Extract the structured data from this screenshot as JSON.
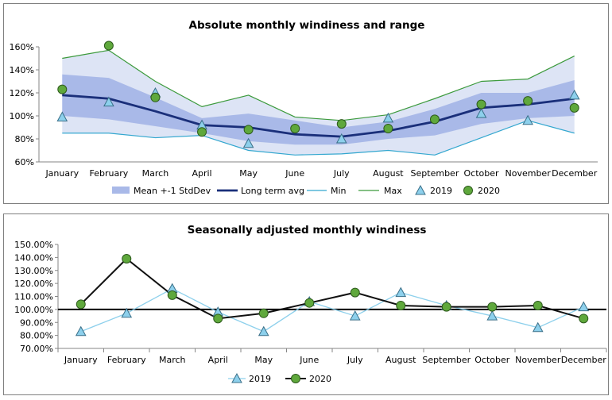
{
  "chart_data": [
    {
      "type": "line",
      "title": "Absolute monthly windiness and range",
      "categories": [
        "January",
        "February",
        "March",
        "April",
        "May",
        "June",
        "July",
        "August",
        "September",
        "October",
        "November",
        "December"
      ],
      "ylim": [
        60,
        160
      ],
      "yticks": [
        "60%",
        "80%",
        "100%",
        "120%",
        "140%",
        "160%"
      ],
      "ytick_values": [
        60,
        80,
        100,
        120,
        140,
        160
      ],
      "bands": [
        {
          "name": "Max",
          "series": "max_band",
          "color": "#dde4f5"
        },
        {
          "name": "Mean +-1 StdDev",
          "color": "#a9b9e8"
        }
      ],
      "series": [
        {
          "name": "Max",
          "kind": "line",
          "color": "#3c9a3c",
          "values": [
            150,
            157,
            130,
            108,
            118,
            99,
            96,
            101,
            115,
            130,
            132,
            152
          ]
        },
        {
          "name": "Min",
          "kind": "line",
          "color": "#33a7cf",
          "values": [
            85,
            85,
            81,
            83,
            70,
            66,
            67,
            70,
            66,
            81,
            96,
            85
          ]
        },
        {
          "name": "Mean upper",
          "kind": "band_edge",
          "values": [
            136,
            133,
            116,
            98,
            102,
            96,
            90,
            95,
            106,
            120,
            120,
            131
          ]
        },
        {
          "name": "Mean lower",
          "kind": "band_edge",
          "values": [
            100,
            97,
            91,
            85,
            78,
            75,
            75,
            80,
            83,
            93,
            98,
            100
          ]
        },
        {
          "name": "Long term avg",
          "kind": "line",
          "color": "#1a2f7a",
          "values": [
            118,
            115,
            104,
            92,
            90,
            84,
            82,
            87,
            95,
            107,
            110,
            115
          ]
        },
        {
          "name": "2019",
          "kind": "triangle",
          "color": "#8dd0ec",
          "values": [
            99,
            112,
            120,
            92,
            76,
            null,
            80,
            98,
            null,
            102,
            96,
            118
          ]
        },
        {
          "name": "2020",
          "kind": "circle",
          "color": "#5fa83c",
          "values": [
            123,
            161,
            116,
            86,
            88,
            89,
            93,
            89,
            97,
            110,
            113,
            107
          ]
        }
      ],
      "legend": [
        "Mean +-1 StdDev",
        "Long term avg",
        "Min",
        "Max",
        "2019",
        "2020"
      ]
    },
    {
      "type": "line",
      "title": "Seasonally adjusted monthly windiness",
      "categories": [
        "January",
        "February",
        "March",
        "April",
        "May",
        "June",
        "July",
        "August",
        "September",
        "October",
        "November",
        "December"
      ],
      "ylim": [
        70,
        150
      ],
      "yticks": [
        "70.00%",
        "80.00%",
        "90.00%",
        "100.00%",
        "110.00%",
        "120.00%",
        "130.00%",
        "140.00%",
        "150.00%"
      ],
      "ytick_values": [
        70,
        80,
        90,
        100,
        110,
        120,
        130,
        140,
        150
      ],
      "reference_line": 100,
      "series": [
        {
          "name": "2019",
          "kind": "triangle",
          "color": "#8dd0ec",
          "values": [
            83,
            97,
            116,
            98,
            83,
            106,
            95,
            113,
            103,
            95,
            86,
            102
          ]
        },
        {
          "name": "2020",
          "kind": "circle",
          "color": "#5fa83c",
          "values": [
            104,
            139,
            111,
            93,
            97,
            105,
            113,
            103,
            102,
            102,
            103,
            93
          ]
        }
      ],
      "legend": [
        "2019",
        "2020"
      ]
    }
  ]
}
